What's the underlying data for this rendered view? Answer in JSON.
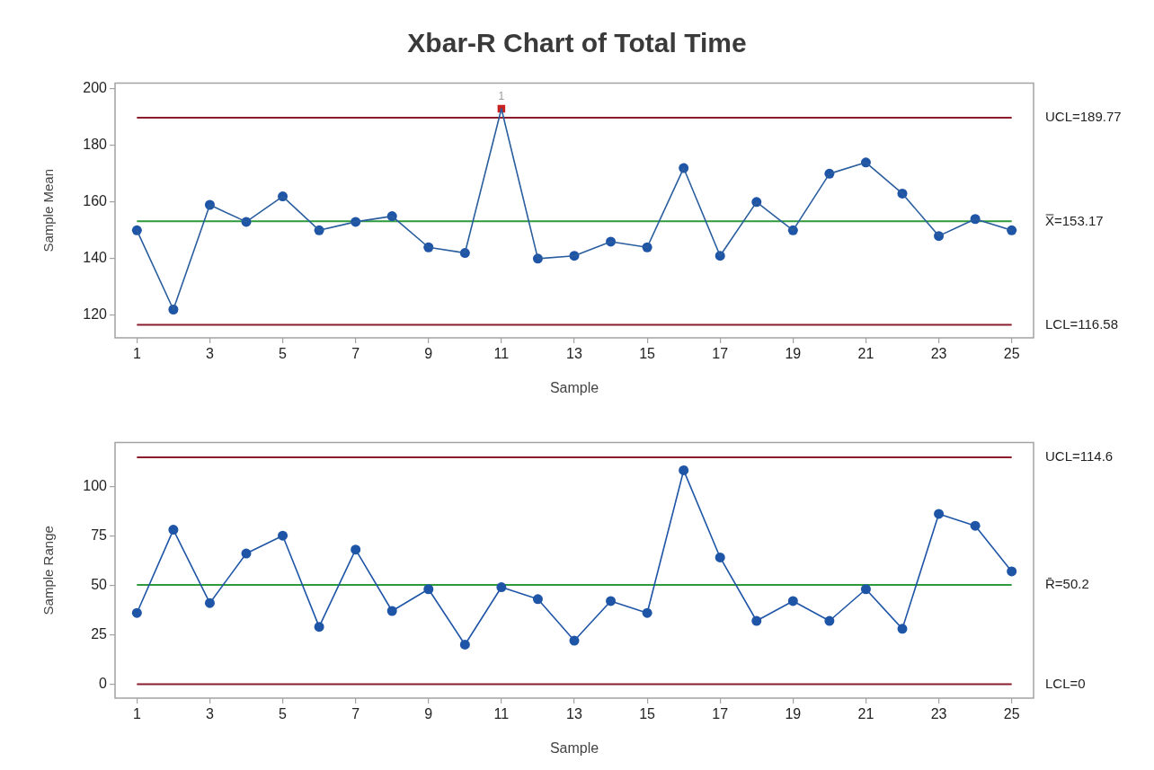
{
  "chart_data": [
    {
      "type": "line",
      "title": "Xbar-R Chart of Total Time",
      "xlabel": "Sample",
      "ylabel": "Sample Mean",
      "x": [
        1,
        2,
        3,
        4,
        5,
        6,
        7,
        8,
        9,
        10,
        11,
        12,
        13,
        14,
        15,
        16,
        17,
        18,
        19,
        20,
        21,
        22,
        23,
        24,
        25
      ],
      "xlim": [
        0.4,
        25.6
      ],
      "xticks": [
        1,
        3,
        5,
        7,
        9,
        11,
        13,
        15,
        17,
        19,
        21,
        23,
        25
      ],
      "ylim": [
        112,
        202
      ],
      "yticks": [
        120,
        140,
        160,
        180,
        200
      ],
      "grid": false,
      "series": [
        {
          "color": "#2a5e9e",
          "marker": "none",
          "values": [
            150,
            122,
            159,
            153,
            162,
            150,
            153,
            155,
            144,
            142,
            193,
            140,
            141,
            146,
            144,
            172,
            141,
            160,
            150,
            170,
            174,
            163,
            148,
            154,
            150
          ]
        },
        {
          "type": "scatter",
          "color": "#1f55a6",
          "marker": "circle",
          "x": [
            1,
            2,
            3,
            4,
            5,
            6,
            7,
            8,
            9,
            10,
            12,
            13,
            14,
            15,
            16,
            17,
            18,
            19,
            20,
            21,
            22,
            23,
            24,
            25
          ],
          "values": [
            150,
            122,
            159,
            153,
            162,
            150,
            153,
            155,
            144,
            142,
            140,
            141,
            146,
            144,
            172,
            141,
            160,
            150,
            170,
            174,
            163,
            148,
            154,
            150
          ]
        },
        {
          "type": "scatter",
          "color": "#c8211f",
          "marker": "square",
          "x": [
            11
          ],
          "values": [
            193
          ]
        }
      ],
      "ref_lines": [
        {
          "axis": "y",
          "value": 189.77,
          "label": "UCL=189.77",
          "color": "#8b1c2c"
        },
        {
          "axis": "y",
          "value": 153.17,
          "label": "X̿=153.17",
          "color": "#2f9a3c"
        },
        {
          "axis": "y",
          "value": 116.58,
          "label": "LCL=116.58",
          "color": "#8b1c2c"
        }
      ],
      "annotations": [
        {
          "text": "1",
          "x": 11,
          "y": 193
        }
      ]
    },
    {
      "type": "line",
      "xlabel": "Sample",
      "ylabel": "Sample Range",
      "x": [
        1,
        2,
        3,
        4,
        5,
        6,
        7,
        8,
        9,
        10,
        11,
        12,
        13,
        14,
        15,
        16,
        17,
        18,
        19,
        20,
        21,
        22,
        23,
        24,
        25
      ],
      "xlim": [
        0.4,
        25.6
      ],
      "xticks": [
        1,
        3,
        5,
        7,
        9,
        11,
        13,
        15,
        17,
        19,
        21,
        23,
        25
      ],
      "ylim": [
        -7,
        122
      ],
      "yticks": [
        0,
        25,
        50,
        75,
        100
      ],
      "grid": false,
      "series": [
        {
          "color": "#1f55a6",
          "marker": "circle",
          "values": [
            36,
            78,
            41,
            66,
            75,
            29,
            68,
            37,
            48,
            20,
            49,
            43,
            22,
            42,
            36,
            108,
            64,
            32,
            42,
            32,
            48,
            28,
            86,
            80,
            57
          ]
        }
      ],
      "ref_lines": [
        {
          "axis": "y",
          "value": 114.6,
          "label": "UCL=114.6",
          "color": "#8b1c2c"
        },
        {
          "axis": "y",
          "value": 50.2,
          "label": "R̄=50.2",
          "color": "#2f9a3c"
        },
        {
          "axis": "y",
          "value": 0,
          "label": "LCL=0",
          "color": "#8b1c2c"
        }
      ]
    }
  ]
}
